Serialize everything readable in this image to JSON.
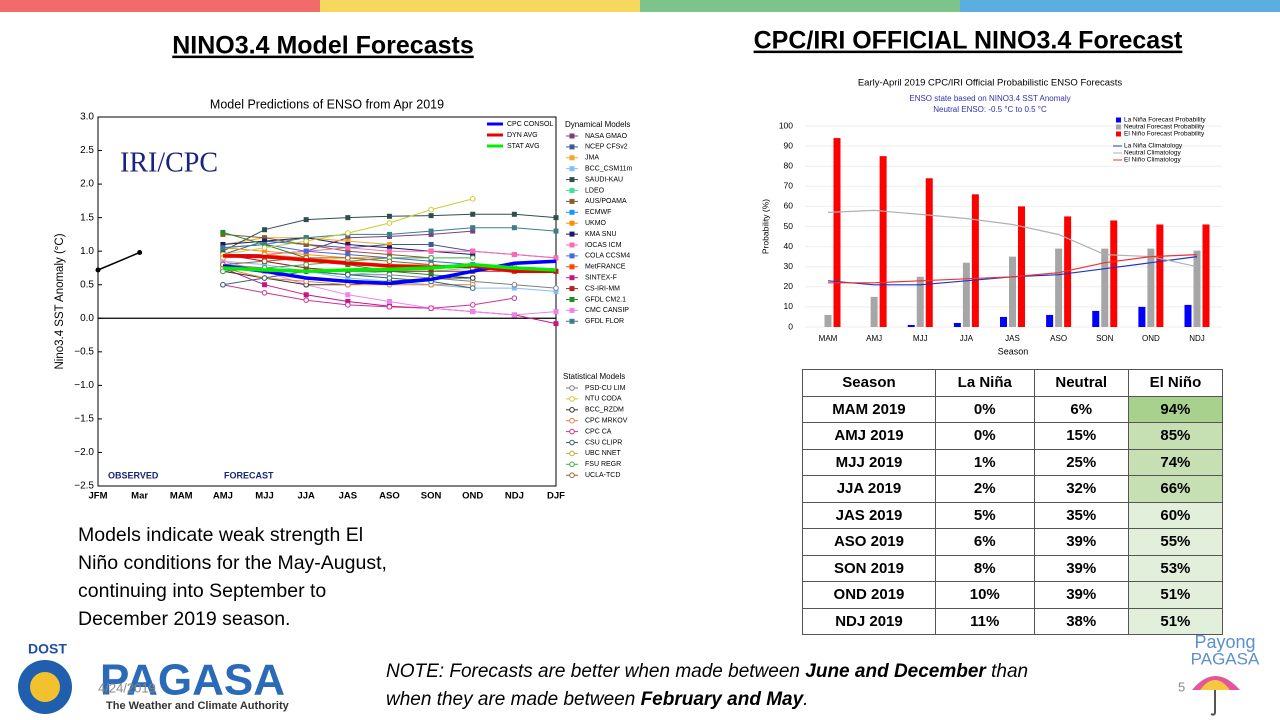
{
  "header": {
    "left_title": "NINO3.4 Model Forecasts",
    "right_title": "CPC/IRI OFFICIAL NINO3.4 Forecast"
  },
  "chart_data": [
    {
      "type": "line",
      "title": "Model Predictions of ENSO from Apr 2019",
      "y_label": "Nino3.4 SST Anomaly (°C)",
      "annotations": [
        "IRI/CPC",
        "OBSERVED",
        "FORECAST"
      ],
      "legend_groups": [
        "Dynamical Models",
        "Statistical Models"
      ],
      "categories": [
        "JFM",
        "Mar",
        "MAM",
        "AMJ",
        "MJJ",
        "JJA",
        "JAS",
        "ASO",
        "SON",
        "OND",
        "NDJ",
        "DJF"
      ],
      "ylim": [
        -2.5,
        3.0
      ],
      "yticks": [
        {
          "value": -2.5,
          "label": "−2.5"
        },
        {
          "value": -2.0,
          "label": "−2.0"
        },
        {
          "value": -1.5,
          "label": "−1.5"
        },
        {
          "value": -1.0,
          "label": "−1.0"
        },
        {
          "value": -0.5,
          "label": "−0.5"
        },
        {
          "value": 0,
          "label": "0.0"
        },
        0.5,
        {
          "value": 1,
          "label": "1.0"
        },
        1.5,
        {
          "value": 2,
          "label": "2.0"
        },
        2.5,
        {
          "value": 3,
          "label": "3.0"
        }
      ],
      "observed": {
        "color": "#000000",
        "values": [
          0.72,
          0.98,
          null,
          null,
          null,
          null,
          null,
          null,
          null,
          null,
          null,
          null
        ]
      },
      "average_series": [
        {
          "name": "CPC CONSOL",
          "color": "#0000ff",
          "values": [
            null,
            null,
            null,
            0.78,
            0.7,
            0.6,
            0.55,
            0.52,
            0.58,
            0.7,
            0.82,
            0.85
          ]
        },
        {
          "name": "DYN AVG",
          "color": "#ee0000",
          "values": [
            null,
            null,
            null,
            0.93,
            0.92,
            0.87,
            0.82,
            0.78,
            0.76,
            0.78,
            0.7,
            0.7
          ]
        },
        {
          "name": "STAT AVG",
          "color": "#00ee00",
          "values": [
            null,
            null,
            null,
            0.75,
            0.72,
            0.7,
            0.72,
            0.73,
            0.75,
            0.8,
            0.75,
            0.72
          ]
        }
      ],
      "dynamical_series": [
        {
          "name": "NASA GMAO",
          "color": "#7f3f7f",
          "values": [
            null,
            null,
            null,
            0.95,
            0.95,
            1.0,
            1.2,
            1.22,
            1.25,
            1.3,
            null,
            null
          ]
        },
        {
          "name": "NCEP CFSv2",
          "color": "#3a5a9a",
          "values": [
            null,
            null,
            null,
            0.95,
            1.15,
            1.1,
            1.05,
            1.1,
            1.1,
            1.0,
            0.95,
            0.9
          ]
        },
        {
          "name": "JMA",
          "color": "#f5a623",
          "values": [
            null,
            null,
            null,
            1.1,
            1.2,
            1.2,
            1.15,
            1.1,
            null,
            null,
            null,
            null
          ]
        },
        {
          "name": "BCC_CSM11m",
          "color": "#7fbfff",
          "values": [
            null,
            null,
            null,
            0.85,
            0.8,
            0.7,
            0.6,
            0.55,
            0.5,
            0.45,
            0.45,
            0.4
          ]
        },
        {
          "name": "SAUDI-KAU",
          "color": "#2f4f4f",
          "values": [
            null,
            null,
            null,
            1.0,
            1.32,
            1.47,
            1.5,
            1.52,
            1.53,
            1.55,
            1.55,
            1.5
          ]
        },
        {
          "name": "LDEO",
          "color": "#40e0a0",
          "values": [
            null,
            null,
            null,
            0.8,
            0.75,
            0.7,
            0.65,
            0.7,
            0.7,
            0.75,
            0.75,
            0.7
          ]
        },
        {
          "name": "AUS/POAMA",
          "color": "#8b5a2b",
          "values": [
            null,
            null,
            null,
            1.25,
            1.2,
            1.1,
            1.0,
            0.95,
            0.9,
            null,
            null,
            null
          ]
        },
        {
          "name": "ECMWF",
          "color": "#1e90ff",
          "values": [
            null,
            null,
            null,
            0.95,
            0.85,
            0.75,
            0.7,
            0.7,
            null,
            null,
            null,
            null
          ]
        },
        {
          "name": "UKMO",
          "color": "#ff8c00",
          "values": [
            null,
            null,
            null,
            1.05,
            1.0,
            0.95,
            0.9,
            0.9,
            null,
            null,
            null,
            null
          ]
        },
        {
          "name": "KMA SNU",
          "color": "#191970",
          "values": [
            null,
            null,
            null,
            1.1,
            1.15,
            1.2,
            1.1,
            1.05,
            1.0,
            0.95,
            null,
            null
          ]
        },
        {
          "name": "IOCAS ICM",
          "color": "#ff69b4",
          "values": [
            null,
            null,
            null,
            0.9,
            0.95,
            1.0,
            1.05,
            1.0,
            1.0,
            1.0,
            0.95,
            0.9
          ]
        },
        {
          "name": "COLA CCSM4",
          "color": "#4169e1",
          "values": [
            null,
            null,
            null,
            1.05,
            1.1,
            1.0,
            0.95,
            0.9,
            0.85,
            0.8,
            0.75,
            0.7
          ]
        },
        {
          "name": "MetFRANCE",
          "color": "#ff4500",
          "values": [
            null,
            null,
            null,
            0.95,
            0.9,
            0.85,
            0.8,
            0.8,
            null,
            null,
            null,
            null
          ]
        },
        {
          "name": "SINTEX-F",
          "color": "#c71585",
          "values": [
            null,
            null,
            null,
            0.75,
            0.5,
            0.35,
            0.25,
            0.18,
            0.15,
            0.1,
            0.05,
            -0.08
          ]
        },
        {
          "name": "CS-IRI-MM",
          "color": "#b22222",
          "values": [
            null,
            null,
            null,
            0.95,
            0.85,
            0.75,
            0.7,
            0.7,
            0.7,
            0.7,
            0.7,
            0.7
          ]
        },
        {
          "name": "GFDL CM2.1",
          "color": "#228b22",
          "values": [
            null,
            null,
            null,
            1.28,
            1.1,
            0.9,
            0.8,
            0.7,
            0.65,
            0.6,
            null,
            null
          ]
        },
        {
          "name": "CMC CANSIP",
          "color": "#ee82ee",
          "values": [
            null,
            null,
            null,
            0.85,
            0.7,
            0.5,
            0.35,
            0.25,
            0.15,
            0.1,
            0.05,
            0.1
          ]
        },
        {
          "name": "GFDL FLOR",
          "color": "#3c7d8c",
          "values": [
            null,
            null,
            null,
            1.05,
            1.1,
            1.2,
            1.25,
            1.25,
            1.3,
            1.35,
            1.35,
            1.3
          ]
        }
      ],
      "statistical_series": [
        {
          "name": "PSD-CU LIM",
          "color": "#808080",
          "values": [
            null,
            null,
            null,
            0.8,
            0.75,
            0.7,
            0.65,
            0.65,
            0.6,
            0.55,
            0.5,
            0.45
          ]
        },
        {
          "name": "NTU CODA",
          "color": "#cccc33",
          "values": [
            null,
            null,
            null,
            0.95,
            1.05,
            1.15,
            1.27,
            1.42,
            1.62,
            1.78,
            null,
            null
          ]
        },
        {
          "name": "BCC_RZDM",
          "color": "#333333",
          "values": [
            null,
            null,
            null,
            0.7,
            0.6,
            0.5,
            0.5,
            0.55,
            0.6,
            0.6,
            null,
            null
          ]
        },
        {
          "name": "CPC MRKOV",
          "color": "#e08040",
          "values": [
            null,
            null,
            null,
            0.75,
            0.6,
            0.55,
            0.5,
            0.5,
            0.5,
            0.5,
            null,
            null
          ]
        },
        {
          "name": "CPC CA",
          "color": "#cc3399",
          "values": [
            null,
            null,
            null,
            0.5,
            0.38,
            0.27,
            0.2,
            0.17,
            0.15,
            0.2,
            0.3,
            null
          ]
        },
        {
          "name": "CSU CLIPR",
          "color": "#336677",
          "values": [
            null,
            null,
            null,
            0.5,
            0.6,
            0.7,
            0.65,
            0.6,
            0.55,
            0.45,
            null,
            null
          ]
        },
        {
          "name": "UBC NNET",
          "color": "#ccaa33",
          "values": [
            null,
            null,
            null,
            0.9,
            0.95,
            0.9,
            0.85,
            0.8,
            0.8,
            0.75,
            0.75,
            null
          ]
        },
        {
          "name": "FSU REGR",
          "color": "#44aa44",
          "values": [
            null,
            null,
            null,
            0.7,
            0.75,
            0.8,
            0.85,
            0.9,
            0.9,
            0.9,
            null,
            null
          ]
        },
        {
          "name": "UCLA-TCD",
          "color": "#996633",
          "values": [
            null,
            null,
            null,
            0.8,
            0.85,
            0.9,
            0.9,
            0.85,
            0.8,
            0.75,
            0.7,
            null
          ]
        }
      ]
    },
    {
      "type": "bar",
      "title": "Early-April 2019 CPC/IRI Official Probabilistic ENSO Forecasts",
      "subtitle": [
        "ENSO state based on NINO3.4 SST Anomaly",
        "Neutral ENSO: -0.5 °C to 0.5 °C"
      ],
      "x_label": "Season",
      "y_label": "Probability (%)",
      "categories": [
        "MAM",
        "AMJ",
        "MJJ",
        "JJA",
        "JAS",
        "ASO",
        "SON",
        "OND",
        "NDJ"
      ],
      "ylim": [
        0,
        100
      ],
      "yticks": [
        0,
        10,
        20,
        30,
        40,
        50,
        60,
        70,
        80,
        90,
        100
      ],
      "grid": true,
      "series": [
        {
          "name": "La Niña Forecast Probability",
          "color": "#0000ff",
          "values": [
            0,
            0,
            1,
            2,
            5,
            6,
            8,
            10,
            11
          ]
        },
        {
          "name": "Neutral Forecast Probability",
          "color": "#a6a6a6",
          "values": [
            6,
            15,
            25,
            32,
            35,
            39,
            39,
            39,
            38
          ]
        },
        {
          "name": "El Niño Forecast Probability",
          "color": "#ff0000",
          "values": [
            94,
            85,
            74,
            66,
            60,
            55,
            53,
            51,
            51
          ]
        }
      ],
      "line_series": [
        {
          "name": "La Niña Climatology",
          "color": "#2233cc",
          "values": [
            23,
            21,
            21,
            23,
            25,
            26,
            29,
            32,
            35
          ]
        },
        {
          "name": "Neutral Climatology",
          "color": "#b0b0b0",
          "values": [
            57,
            58,
            56,
            54,
            51,
            46,
            36,
            35,
            30
          ]
        },
        {
          "name": "El Niño Climatology",
          "color": "#ee3333",
          "values": [
            22,
            22,
            23,
            24,
            25,
            27,
            32,
            35,
            36
          ]
        }
      ]
    }
  ],
  "table": {
    "columns": [
      "Season",
      "La Niña",
      "Neutral",
      "El Niño"
    ],
    "rows": [
      [
        "MAM 2019",
        "0%",
        "6%",
        "94%"
      ],
      [
        "AMJ 2019",
        "0%",
        "15%",
        "85%"
      ],
      [
        "MJJ 2019",
        "1%",
        "25%",
        "74%"
      ],
      [
        "JJA 2019",
        "2%",
        "32%",
        "66%"
      ],
      [
        "JAS 2019",
        "5%",
        "35%",
        "60%"
      ],
      [
        "ASO 2019",
        "6%",
        "39%",
        "55%"
      ],
      [
        "SON 2019",
        "8%",
        "39%",
        "53%"
      ],
      [
        "OND 2019",
        "10%",
        "39%",
        "51%"
      ],
      [
        "NDJ 2019",
        "11%",
        "38%",
        "51%"
      ]
    ]
  },
  "description": [
    "Models indicate weak strength El",
    "Niño conditions for the May-August,",
    "continuing into September to",
    "December 2019 season."
  ],
  "note": [
    [
      "NOTE: Forecasts are better when made between ",
      "June and December",
      " than"
    ],
    [
      "when they are made between ",
      "February and May",
      "."
    ]
  ],
  "footer": {
    "dost": "DOST",
    "agency": "PAGASA",
    "tagline": "The Weather and Climate Authority",
    "date": "4/24/2019",
    "page": "5",
    "payong": [
      "Payong",
      "PAGASA"
    ]
  }
}
